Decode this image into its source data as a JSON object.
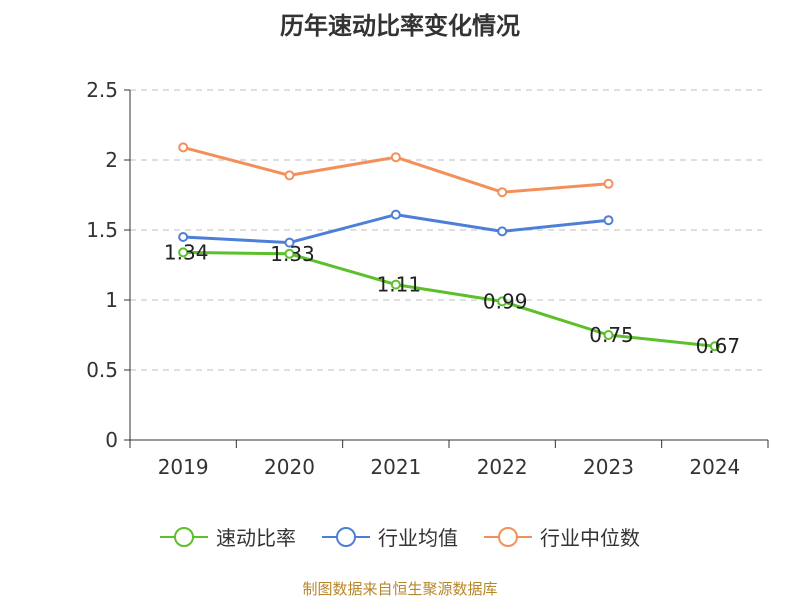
{
  "chart_data": {
    "type": "line",
    "title": "历年速动比率变化情况",
    "categories": [
      "2019",
      "2020",
      "2021",
      "2022",
      "2023",
      "2024"
    ],
    "ylim": [
      0,
      2.5
    ],
    "yticks": [
      "0",
      "0.5",
      "1",
      "1.5",
      "2",
      "2.5"
    ],
    "ytick_values": [
      0,
      0.5,
      1,
      1.5,
      2,
      2.5
    ],
    "grid": true,
    "legend_position": "bottom",
    "series": [
      {
        "name": "速动比率",
        "color": "#5cc02c",
        "values": [
          1.34,
          1.33,
          1.11,
          0.99,
          0.75,
          0.67
        ],
        "labels": [
          "1.34",
          "1.33",
          "1.11",
          "0.99",
          "0.75",
          "0.67"
        ]
      },
      {
        "name": "行业均值",
        "color": "#4e7fd8",
        "values": [
          1.45,
          1.41,
          1.61,
          1.49,
          1.57,
          null
        ]
      },
      {
        "name": "行业中位数",
        "color": "#f3905a",
        "values": [
          2.09,
          1.89,
          2.02,
          1.77,
          1.83,
          null
        ]
      }
    ]
  },
  "footer": {
    "source": "制图数据来自恒生聚源数据库"
  }
}
